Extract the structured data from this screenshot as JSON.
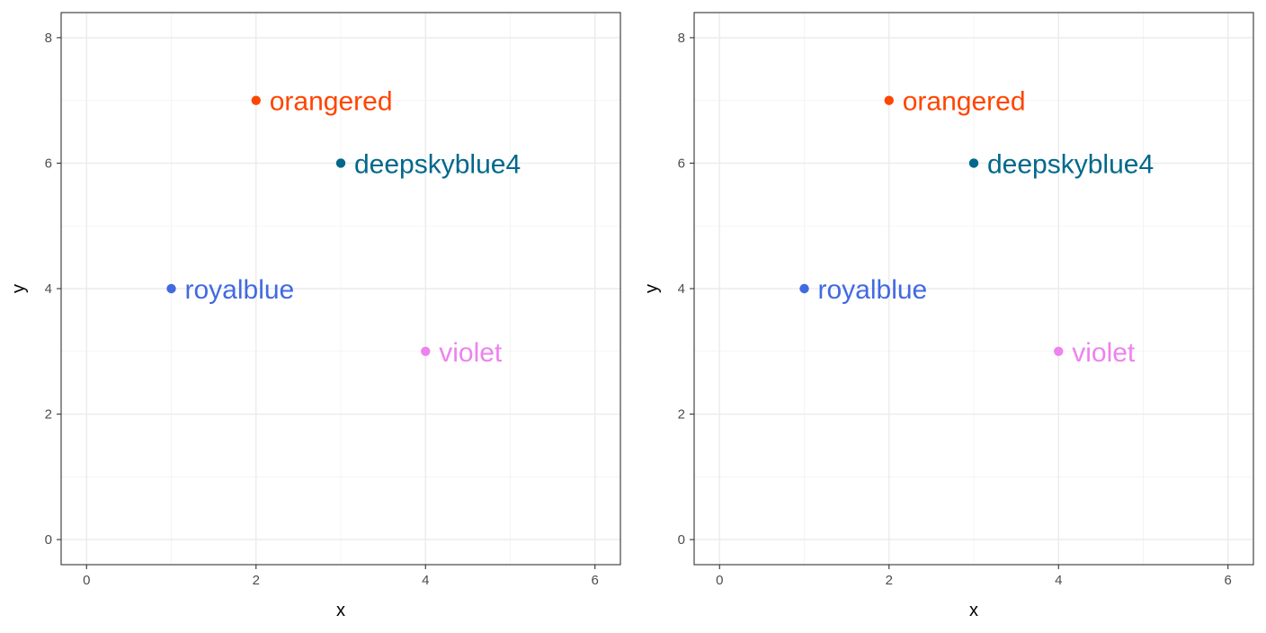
{
  "chart_data": [
    {
      "type": "scatter",
      "xlabel": "x",
      "ylabel": "y",
      "xlim": [
        -0.3,
        6.3
      ],
      "ylim": [
        -0.4,
        8.4
      ],
      "x_ticks": [
        0,
        2,
        4,
        6
      ],
      "y_ticks": [
        0,
        2,
        4,
        6,
        8
      ],
      "grid": true,
      "points": [
        {
          "x": 1,
          "y": 4,
          "label": "royalblue",
          "color": "#4169e1"
        },
        {
          "x": 2,
          "y": 7,
          "label": "orangered",
          "color": "#ff4500"
        },
        {
          "x": 3,
          "y": 6,
          "label": "deepskyblue4",
          "color": "#00688b"
        },
        {
          "x": 4,
          "y": 3,
          "label": "violet",
          "color": "#ee82ee"
        }
      ]
    },
    {
      "type": "scatter",
      "xlabel": "x",
      "ylabel": "y",
      "xlim": [
        -0.3,
        6.3
      ],
      "ylim": [
        -0.4,
        8.4
      ],
      "x_ticks": [
        0,
        2,
        4,
        6
      ],
      "y_ticks": [
        0,
        2,
        4,
        6,
        8
      ],
      "grid": true,
      "points": [
        {
          "x": 1,
          "y": 4,
          "label": "royalblue",
          "color": "#4169e1"
        },
        {
          "x": 2,
          "y": 7,
          "label": "orangered",
          "color": "#ff4500"
        },
        {
          "x": 3,
          "y": 6,
          "label": "deepskyblue4",
          "color": "#00688b"
        },
        {
          "x": 4,
          "y": 3,
          "label": "violet",
          "color": "#ee82ee"
        }
      ]
    }
  ]
}
